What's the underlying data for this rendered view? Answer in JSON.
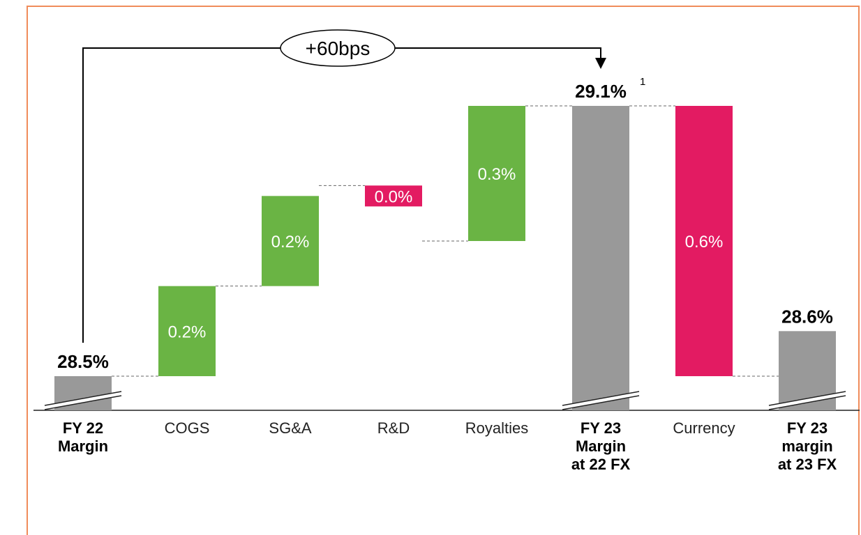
{
  "chart_data": {
    "type": "waterfall",
    "title": "",
    "xlabel": "",
    "ylabel": "",
    "categories": [
      {
        "label": [
          "FY 22",
          "Margin"
        ],
        "bold": true
      },
      {
        "label": [
          "COGS"
        ],
        "bold": false
      },
      {
        "label": [
          "SG&A"
        ],
        "bold": false
      },
      {
        "label": [
          "R&D"
        ],
        "bold": false
      },
      {
        "label": [
          "Royalties"
        ],
        "bold": false
      },
      {
        "label": [
          "FY 23",
          "Margin",
          "at 22 FX"
        ],
        "bold": true
      },
      {
        "label": [
          "Currency"
        ],
        "bold": false
      },
      {
        "label": [
          "FY 23",
          "margin",
          "at 23 FX"
        ],
        "bold": true
      }
    ],
    "bars": [
      {
        "kind": "total",
        "start": 0,
        "value": 28.5,
        "label": "28.5%",
        "color": "#999999",
        "broken_axis": true
      },
      {
        "kind": "increase",
        "start": 28.5,
        "value": 0.2,
        "label": "0.2%",
        "color": "#6ab444"
      },
      {
        "kind": "increase",
        "start": 28.7,
        "value": 0.2,
        "label": "0.2%",
        "color": "#6ab444"
      },
      {
        "kind": "decrease",
        "start": 28.9,
        "value": 0.0,
        "label": "0.0%",
        "color": "#e31b62"
      },
      {
        "kind": "increase",
        "start": 28.8,
        "value": 0.3,
        "label": "0.3%",
        "color": "#6ab444"
      },
      {
        "kind": "total",
        "start": 0,
        "value": 29.1,
        "label": "29.1%",
        "footnote": "1",
        "color": "#999999",
        "broken_axis": true
      },
      {
        "kind": "decrease",
        "start": 29.1,
        "value": 0.6,
        "label": "0.6%",
        "color": "#e31b62"
      },
      {
        "kind": "total",
        "start": 0,
        "value": 28.6,
        "label": "28.6%",
        "color": "#999999",
        "broken_axis": true
      }
    ],
    "annotation": {
      "text": "+60bps",
      "from_index": 0,
      "to_index": 5
    },
    "ylim": [
      28.45,
      29.2
    ],
    "grid": false,
    "legend": "none"
  }
}
